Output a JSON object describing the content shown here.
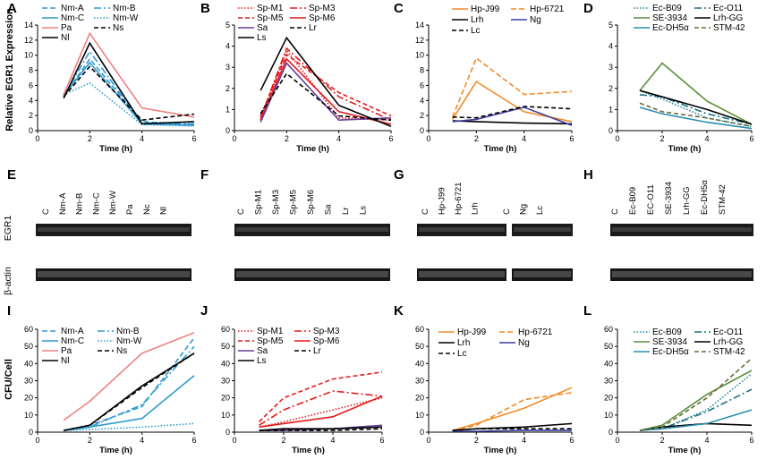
{
  "figure": {
    "y_labels": {
      "expression": "Relative EGR1 Expression",
      "egr1": "EGR1",
      "actin": "β-actin",
      "cfu": "CFU/Cell"
    },
    "gels": [
      {
        "label": "E",
        "lanes": [
          "C",
          "Nm-A",
          "Nm-B",
          "Nm-C",
          "Nm-W",
          "Pa",
          "Nc",
          "Nl"
        ]
      },
      {
        "label": "F",
        "lanes": [
          "C",
          "Sp-M1",
          "Sp-M3",
          "Sp-M5",
          "Sp-M6",
          "Sa",
          "Lr",
          "Ls"
        ]
      },
      {
        "label": "G",
        "lanes": [
          "C",
          "Hp-J99",
          "Hp-6721",
          "Lrh",
          "C",
          "Ng",
          "Lc"
        ]
      },
      {
        "label": "H",
        "lanes": [
          "C",
          "Ec-B09",
          "EC-O11",
          "SE-3934",
          "Lrh-GG",
          "Ec-DH5α",
          "STM-42"
        ]
      }
    ]
  },
  "chart_data": [
    {
      "type": "line",
      "panel": "A",
      "xlabel": "Time (h)",
      "ylabel": "Relative EGR1 Expression",
      "xlim": [
        0,
        6
      ],
      "ylim": [
        0,
        14
      ],
      "xticks": [
        0,
        2,
        4,
        6
      ],
      "yticks": [
        0,
        2,
        4,
        6,
        8,
        10,
        12,
        14
      ],
      "x": [
        1,
        2,
        4,
        6
      ],
      "series": [
        {
          "name": "Nm-A",
          "color": "#2e9ad0",
          "dash": "6,3",
          "values": [
            4.5,
            9.5,
            1.2,
            0.8
          ]
        },
        {
          "name": "Nm-B",
          "color": "#2e9ad0",
          "dash": "8,3,2,3",
          "values": [
            4.6,
            10.5,
            1.0,
            0.9
          ]
        },
        {
          "name": "Nm-C",
          "color": "#2e9ad0",
          "dash": "",
          "values": [
            4.7,
            9.0,
            0.9,
            0.7
          ]
        },
        {
          "name": "Nm-W",
          "color": "#2e9ad0",
          "dash": "1.5,2",
          "values": [
            4.8,
            6.3,
            0.8,
            0.6
          ]
        },
        {
          "name": "Pa",
          "color": "#f08080",
          "dash": "",
          "values": [
            4.8,
            12.9,
            3.0,
            1.8
          ]
        },
        {
          "name": "Ns",
          "color": "#000000",
          "dash": "5,3",
          "values": [
            4.5,
            8.5,
            1.4,
            2.2
          ]
        },
        {
          "name": "Nl",
          "color": "#000000",
          "dash": "",
          "values": [
            4.3,
            11.6,
            0.9,
            1.2
          ]
        }
      ]
    },
    {
      "type": "line",
      "panel": "B",
      "xlabel": "Time (h)",
      "ylabel": "",
      "xlim": [
        0,
        6
      ],
      "ylim": [
        0,
        5
      ],
      "xticks": [
        0,
        2,
        4,
        6
      ],
      "yticks": [
        0,
        1,
        2,
        3,
        4,
        5
      ],
      "x": [
        1,
        2,
        4,
        6
      ],
      "series": [
        {
          "name": "Sp-M1",
          "color": "#e41a1c",
          "dash": "1.5,2",
          "values": [
            0.5,
            3.8,
            0.6,
            0.5
          ]
        },
        {
          "name": "Sp-M3",
          "color": "#e41a1c",
          "dash": "8,3,2,3",
          "values": [
            0.6,
            3.9,
            1.6,
            0.5
          ]
        },
        {
          "name": "Sp-M5",
          "color": "#e41a1c",
          "dash": "5,3",
          "values": [
            0.7,
            3.6,
            1.8,
            0.7
          ]
        },
        {
          "name": "Sp-M6",
          "color": "#e41a1c",
          "dash": "",
          "values": [
            0.5,
            3.4,
            0.9,
            0.3
          ]
        },
        {
          "name": "Sa",
          "color": "#6a3d9a",
          "dash": "",
          "values": [
            0.4,
            3.2,
            0.5,
            0.6
          ]
        },
        {
          "name": "Lr",
          "color": "#000000",
          "dash": "5,3",
          "values": [
            0.8,
            2.7,
            0.7,
            0.5
          ]
        },
        {
          "name": "Ls",
          "color": "#000000",
          "dash": "",
          "values": [
            1.9,
            4.4,
            1.2,
            0.2
          ]
        }
      ]
    },
    {
      "type": "line",
      "panel": "C",
      "xlabel": "Time (h)",
      "ylabel": "",
      "xlim": [
        0,
        6
      ],
      "ylim": [
        0,
        14
      ],
      "xticks": [
        0,
        2,
        4,
        6
      ],
      "yticks": [
        0,
        2,
        4,
        6,
        8,
        10,
        12,
        14
      ],
      "x": [
        1,
        2,
        4,
        6
      ],
      "series": [
        {
          "name": "Hp-J99",
          "color": "#f28c28",
          "dash": "",
          "values": [
            1.5,
            6.5,
            2.5,
            1.2
          ]
        },
        {
          "name": "Hp-6721",
          "color": "#f28c28",
          "dash": "6,3",
          "values": [
            1.8,
            9.6,
            4.8,
            5.2
          ]
        },
        {
          "name": "Lrh",
          "color": "#000000",
          "dash": "",
          "values": [
            1.3,
            1.2,
            1.0,
            0.9
          ]
        },
        {
          "name": "Ng",
          "color": "#3f3f9f",
          "dash": "",
          "values": [
            1.2,
            1.5,
            3.1,
            0.7
          ]
        },
        {
          "name": "Lc",
          "color": "#000000",
          "dash": "5,3",
          "values": [
            1.8,
            1.7,
            3.2,
            2.9
          ]
        }
      ]
    },
    {
      "type": "line",
      "panel": "D",
      "xlabel": "Time (h)",
      "ylabel": "",
      "xlim": [
        0,
        6
      ],
      "ylim": [
        0,
        5
      ],
      "xticks": [
        0,
        2,
        4,
        6
      ],
      "yticks": [
        0,
        1,
        2,
        3,
        4,
        5
      ],
      "x": [
        1,
        2,
        4,
        6
      ],
      "series": [
        {
          "name": "Ec-B09",
          "color": "#1f8a9c",
          "dash": "1.5,2",
          "values": [
            1.9,
            1.5,
            0.6,
            0.2
          ]
        },
        {
          "name": "Ec-O11",
          "color": "#1f6f80",
          "dash": "8,3,2,3",
          "values": [
            1.7,
            1.6,
            0.8,
            0.3
          ]
        },
        {
          "name": "SE-3934",
          "color": "#5a8f3a",
          "dash": "",
          "values": [
            1.9,
            3.2,
            1.4,
            0.3
          ]
        },
        {
          "name": "Lrh-GG",
          "color": "#000000",
          "dash": "",
          "values": [
            1.9,
            1.6,
            1.0,
            0.3
          ]
        },
        {
          "name": "Ec-DH5α",
          "color": "#2a8fb0",
          "dash": "",
          "values": [
            1.1,
            0.8,
            0.4,
            0.1
          ]
        },
        {
          "name": "STM-42",
          "color": "#6b6b3a",
          "dash": "5,3",
          "values": [
            1.3,
            0.9,
            0.6,
            0.2
          ]
        }
      ]
    },
    {
      "type": "line",
      "panel": "I",
      "xlabel": "Time (h)",
      "ylabel": "CFU/Cell",
      "xlim": [
        0,
        6
      ],
      "ylim": [
        0,
        60
      ],
      "xticks": [
        0,
        2,
        4,
        6
      ],
      "yticks": [
        0,
        10,
        20,
        30,
        40,
        50,
        60
      ],
      "x": [
        1,
        2,
        4,
        6
      ],
      "series": [
        {
          "name": "Nm-A",
          "color": "#2e9ad0",
          "dash": "6,3",
          "values": [
            1,
            4,
            15,
            55
          ]
        },
        {
          "name": "Nm-B",
          "color": "#2e9ad0",
          "dash": "8,3,2,3",
          "values": [
            1,
            3,
            16,
            50
          ]
        },
        {
          "name": "Nm-C",
          "color": "#2e9ad0",
          "dash": "",
          "values": [
            1,
            3,
            8,
            33
          ]
        },
        {
          "name": "Nm-W",
          "color": "#2e9ad0",
          "dash": "1.5,2",
          "values": [
            1,
            1.5,
            3,
            5
          ]
        },
        {
          "name": "Pa",
          "color": "#f08080",
          "dash": "",
          "values": [
            7,
            18,
            46,
            58
          ]
        },
        {
          "name": "Ns",
          "color": "#000000",
          "dash": "5,3",
          "values": [
            1,
            4,
            26,
            46
          ]
        },
        {
          "name": "Nl",
          "color": "#000000",
          "dash": "",
          "values": [
            1,
            4,
            27,
            46
          ]
        }
      ]
    },
    {
      "type": "line",
      "panel": "J",
      "xlabel": "Time (h)",
      "ylabel": "",
      "xlim": [
        0,
        6
      ],
      "ylim": [
        0,
        60
      ],
      "xticks": [
        0,
        2,
        4,
        6
      ],
      "yticks": [
        0,
        10,
        20,
        30,
        40,
        50,
        60
      ],
      "x": [
        1,
        2,
        4,
        6
      ],
      "series": [
        {
          "name": "Sp-M1",
          "color": "#e41a1c",
          "dash": "1.5,2",
          "values": [
            3,
            6,
            13,
            20
          ]
        },
        {
          "name": "Sp-M3",
          "color": "#e41a1c",
          "dash": "8,3,2,3",
          "values": [
            4,
            13,
            24,
            21
          ]
        },
        {
          "name": "Sp-M5",
          "color": "#e41a1c",
          "dash": "5,3",
          "values": [
            6,
            20,
            31,
            35
          ]
        },
        {
          "name": "Sp-M6",
          "color": "#e41a1c",
          "dash": "",
          "values": [
            3,
            5,
            9,
            21
          ]
        },
        {
          "name": "Sa",
          "color": "#6a3d9a",
          "dash": "",
          "values": [
            1,
            1,
            2,
            4
          ]
        },
        {
          "name": "Lr",
          "color": "#000000",
          "dash": "5,3",
          "values": [
            1,
            1,
            1,
            2
          ]
        },
        {
          "name": "Ls",
          "color": "#000000",
          "dash": "",
          "values": [
            1,
            2,
            2,
            3
          ]
        }
      ]
    },
    {
      "type": "line",
      "panel": "K",
      "xlabel": "Time (h)",
      "ylabel": "",
      "xlim": [
        0,
        6
      ],
      "ylim": [
        0,
        60
      ],
      "xticks": [
        0,
        2,
        4,
        6
      ],
      "yticks": [
        0,
        10,
        20,
        30,
        40,
        50,
        60
      ],
      "x": [
        1,
        2,
        4,
        6
      ],
      "series": [
        {
          "name": "Hp-J99",
          "color": "#f28c28",
          "dash": "",
          "values": [
            1,
            5,
            14,
            26
          ]
        },
        {
          "name": "Hp-6721",
          "color": "#f28c28",
          "dash": "6,3",
          "values": [
            1,
            4,
            19,
            23
          ]
        },
        {
          "name": "Lrh",
          "color": "#000000",
          "dash": "",
          "values": [
            1,
            2,
            3,
            5
          ]
        },
        {
          "name": "Ng",
          "color": "#3f3f9f",
          "dash": "",
          "values": [
            0.5,
            0.5,
            1,
            1
          ]
        },
        {
          "name": "Lc",
          "color": "#000000",
          "dash": "5,3",
          "values": [
            1,
            2,
            2,
            2
          ]
        }
      ]
    },
    {
      "type": "line",
      "panel": "L",
      "xlabel": "Time (h)",
      "ylabel": "",
      "xlim": [
        0,
        6
      ],
      "ylim": [
        0,
        60
      ],
      "xticks": [
        0,
        2,
        4,
        6
      ],
      "yticks": [
        0,
        10,
        20,
        30,
        40,
        50,
        60
      ],
      "x": [
        1,
        2,
        4,
        6
      ],
      "series": [
        {
          "name": "Ec-B09",
          "color": "#1f8a9c",
          "dash": "1.5,2",
          "values": [
            1,
            2,
            13,
            34
          ]
        },
        {
          "name": "Ec-O11",
          "color": "#1f6f80",
          "dash": "8,3,2,3",
          "values": [
            1,
            2,
            12,
            25
          ]
        },
        {
          "name": "SE-3934",
          "color": "#5a8f3a",
          "dash": "",
          "values": [
            1,
            4,
            22,
            36
          ]
        },
        {
          "name": "Lrh-GG",
          "color": "#000000",
          "dash": "",
          "values": [
            1,
            3,
            5,
            4
          ]
        },
        {
          "name": "Ec-DH5α",
          "color": "#2a8fb0",
          "dash": "",
          "values": [
            1,
            2,
            5,
            13
          ]
        },
        {
          "name": "STM-42",
          "color": "#6b6b3a",
          "dash": "5,3",
          "values": [
            1,
            3,
            20,
            43
          ]
        }
      ]
    }
  ]
}
